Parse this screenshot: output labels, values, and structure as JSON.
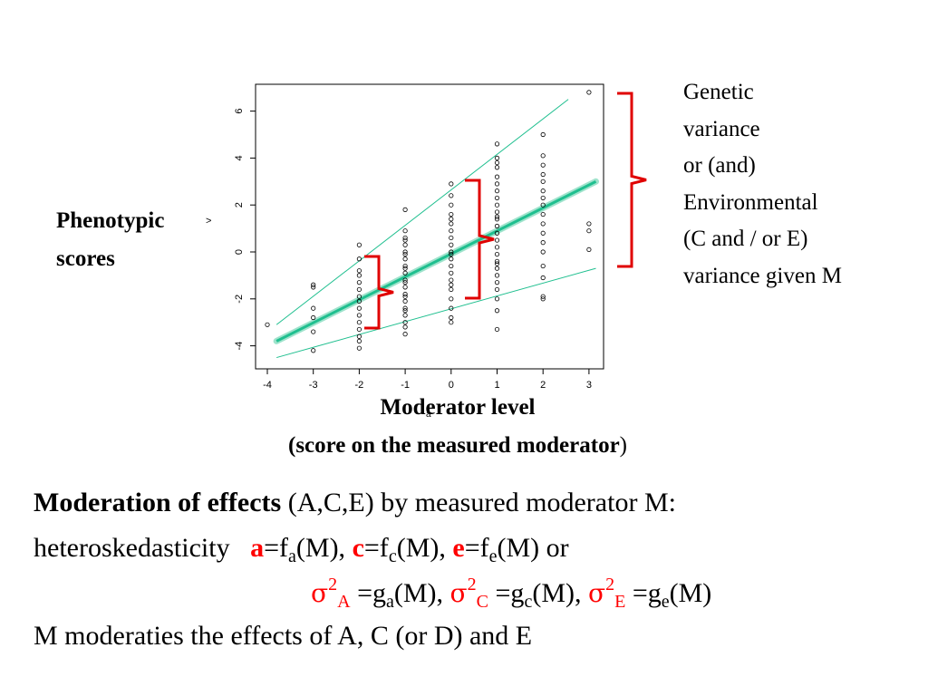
{
  "chart_data": {
    "type": "scatter",
    "title": "",
    "xlabel_line1": "Moderator level",
    "xlabel_line2_bold": "(score on the measured moderator",
    "xlabel_line2_tail": ")",
    "ylabel_line1": "Phenotypic",
    "ylabel_line2": "scores",
    "xlim": [
      -4.2,
      3.2
    ],
    "ylim": [
      -4.5,
      7.2
    ],
    "x_ticks": [
      "-4",
      "-3",
      "-2",
      "-1",
      "0",
      "1",
      "2",
      "3"
    ],
    "y_ticks": [
      "-4",
      "-2",
      "0",
      "2",
      "4",
      "6"
    ],
    "grid": false,
    "series": [
      {
        "kind": "points",
        "points": [
          [
            -4,
            -3.1
          ],
          [
            -3,
            -1.5
          ],
          [
            -3,
            -2.4
          ],
          [
            -3,
            -2.8
          ],
          [
            -3,
            -3.4
          ],
          [
            -3,
            -4.2
          ],
          [
            -3,
            -1.4
          ],
          [
            -2,
            0.3
          ],
          [
            -2,
            -0.3
          ],
          [
            -2,
            -0.8
          ],
          [
            -2,
            -1.0
          ],
          [
            -2,
            -1.3
          ],
          [
            -2,
            -1.6
          ],
          [
            -2,
            -1.9
          ],
          [
            -2,
            -2.1
          ],
          [
            -2,
            -2.4
          ],
          [
            -2,
            -2.7
          ],
          [
            -2,
            -3.0
          ],
          [
            -2,
            -3.3
          ],
          [
            -2,
            -3.6
          ],
          [
            -2,
            -3.8
          ],
          [
            -2,
            -4.1
          ],
          [
            -1,
            1.8
          ],
          [
            -1,
            0.9
          ],
          [
            -1,
            0.6
          ],
          [
            -1,
            0.3
          ],
          [
            -1,
            0.0
          ],
          [
            -1,
            -0.3
          ],
          [
            -1,
            -0.6
          ],
          [
            -1,
            -0.9
          ],
          [
            -1,
            -1.2
          ],
          [
            -1,
            -1.5
          ],
          [
            -1,
            -1.8
          ],
          [
            -1,
            -2.1
          ],
          [
            -1,
            -2.4
          ],
          [
            -1,
            -2.7
          ],
          [
            -1,
            -3.0
          ],
          [
            -1,
            -3.2
          ],
          [
            -1,
            -3.5
          ],
          [
            -1,
            0.5
          ],
          [
            -1,
            -0.1
          ],
          [
            -1,
            -0.7
          ],
          [
            -1,
            -1.3
          ],
          [
            -1,
            -1.9
          ],
          [
            -1,
            -2.5
          ],
          [
            0,
            2.9
          ],
          [
            0,
            2.4
          ],
          [
            0,
            2.0
          ],
          [
            0,
            1.6
          ],
          [
            0,
            1.2
          ],
          [
            0,
            0.9
          ],
          [
            0,
            0.6
          ],
          [
            0,
            0.3
          ],
          [
            0,
            0.0
          ],
          [
            0,
            -0.3
          ],
          [
            0,
            -0.6
          ],
          [
            0,
            -0.9
          ],
          [
            0,
            -1.2
          ],
          [
            0,
            -1.6
          ],
          [
            0,
            -2.0
          ],
          [
            0,
            -2.4
          ],
          [
            0,
            -2.8
          ],
          [
            0,
            -3.0
          ],
          [
            0,
            1.4
          ],
          [
            0,
            -0.1
          ],
          [
            0,
            -1.4
          ],
          [
            1,
            4.6
          ],
          [
            1,
            4.0
          ],
          [
            1,
            3.6
          ],
          [
            1,
            3.2
          ],
          [
            1,
            2.9
          ],
          [
            1,
            2.6
          ],
          [
            1,
            2.3
          ],
          [
            1,
            2.0
          ],
          [
            1,
            1.7
          ],
          [
            1,
            1.4
          ],
          [
            1,
            1.1
          ],
          [
            1,
            0.8
          ],
          [
            1,
            0.5
          ],
          [
            1,
            0.2
          ],
          [
            1,
            -0.1
          ],
          [
            1,
            -0.4
          ],
          [
            1,
            -0.7
          ],
          [
            1,
            -1.0
          ],
          [
            1,
            -1.3
          ],
          [
            1,
            -1.6
          ],
          [
            1,
            -2.0
          ],
          [
            1,
            -2.5
          ],
          [
            1,
            -3.3
          ],
          [
            1,
            3.8
          ],
          [
            1,
            1.5
          ],
          [
            1,
            -0.5
          ],
          [
            2,
            5.0
          ],
          [
            2,
            4.1
          ],
          [
            2,
            3.7
          ],
          [
            2,
            3.3
          ],
          [
            2,
            3.0
          ],
          [
            2,
            2.6
          ],
          [
            2,
            2.3
          ],
          [
            2,
            2.0
          ],
          [
            2,
            1.6
          ],
          [
            2,
            1.2
          ],
          [
            2,
            0.8
          ],
          [
            2,
            0.4
          ],
          [
            2,
            0.0
          ],
          [
            2,
            -0.6
          ],
          [
            2,
            -1.1
          ],
          [
            2,
            -1.9
          ],
          [
            2,
            -2.0
          ],
          [
            3,
            6.8
          ],
          [
            3,
            1.2
          ],
          [
            3,
            0.9
          ],
          [
            3,
            0.1
          ]
        ]
      },
      {
        "kind": "line",
        "role": "regression",
        "x": [
          -3.8,
          3.15
        ],
        "y": [
          -3.8,
          3.0
        ]
      },
      {
        "kind": "line",
        "role": "upper-bound",
        "x": [
          -3.8,
          2.55
        ],
        "y": [
          -3.1,
          6.5
        ]
      },
      {
        "kind": "line",
        "role": "lower-bound",
        "x": [
          -3.8,
          3.15
        ],
        "y": [
          -4.5,
          -0.7
        ]
      }
    ],
    "annotations": {
      "bracket_color": "#e00000",
      "line_color": "#1fbf8f",
      "small_marker": ">",
      "xlabel_marker": "a"
    }
  },
  "side_note": {
    "lines": [
      "Genetic",
      "variance",
      "or (and)",
      "Environmental",
      "(C and / or E)",
      "variance given M"
    ]
  },
  "caption": {
    "line1_bold": "Moderation of effects",
    "line1_rest": " (A,C,E) by measured moderator M:",
    "line2_prefix": "heteroskedasticity",
    "a": "a",
    "eq": "=f",
    "sub_a": "a",
    "m_a": "(M), ",
    "c": "c",
    "sub_c": "c",
    "m_c": "(M), ",
    "e": "e",
    "sub_e": "e",
    "m_e": "(M) or",
    "sigma": "σ",
    "two": "2",
    "A": "A",
    "C": "C",
    "E": "E",
    "g_eq": " =g",
    "m_comma": "(M), ",
    "m_end": "(M)",
    "line4": "M moderaties the effects of A, C (or D) and E"
  }
}
